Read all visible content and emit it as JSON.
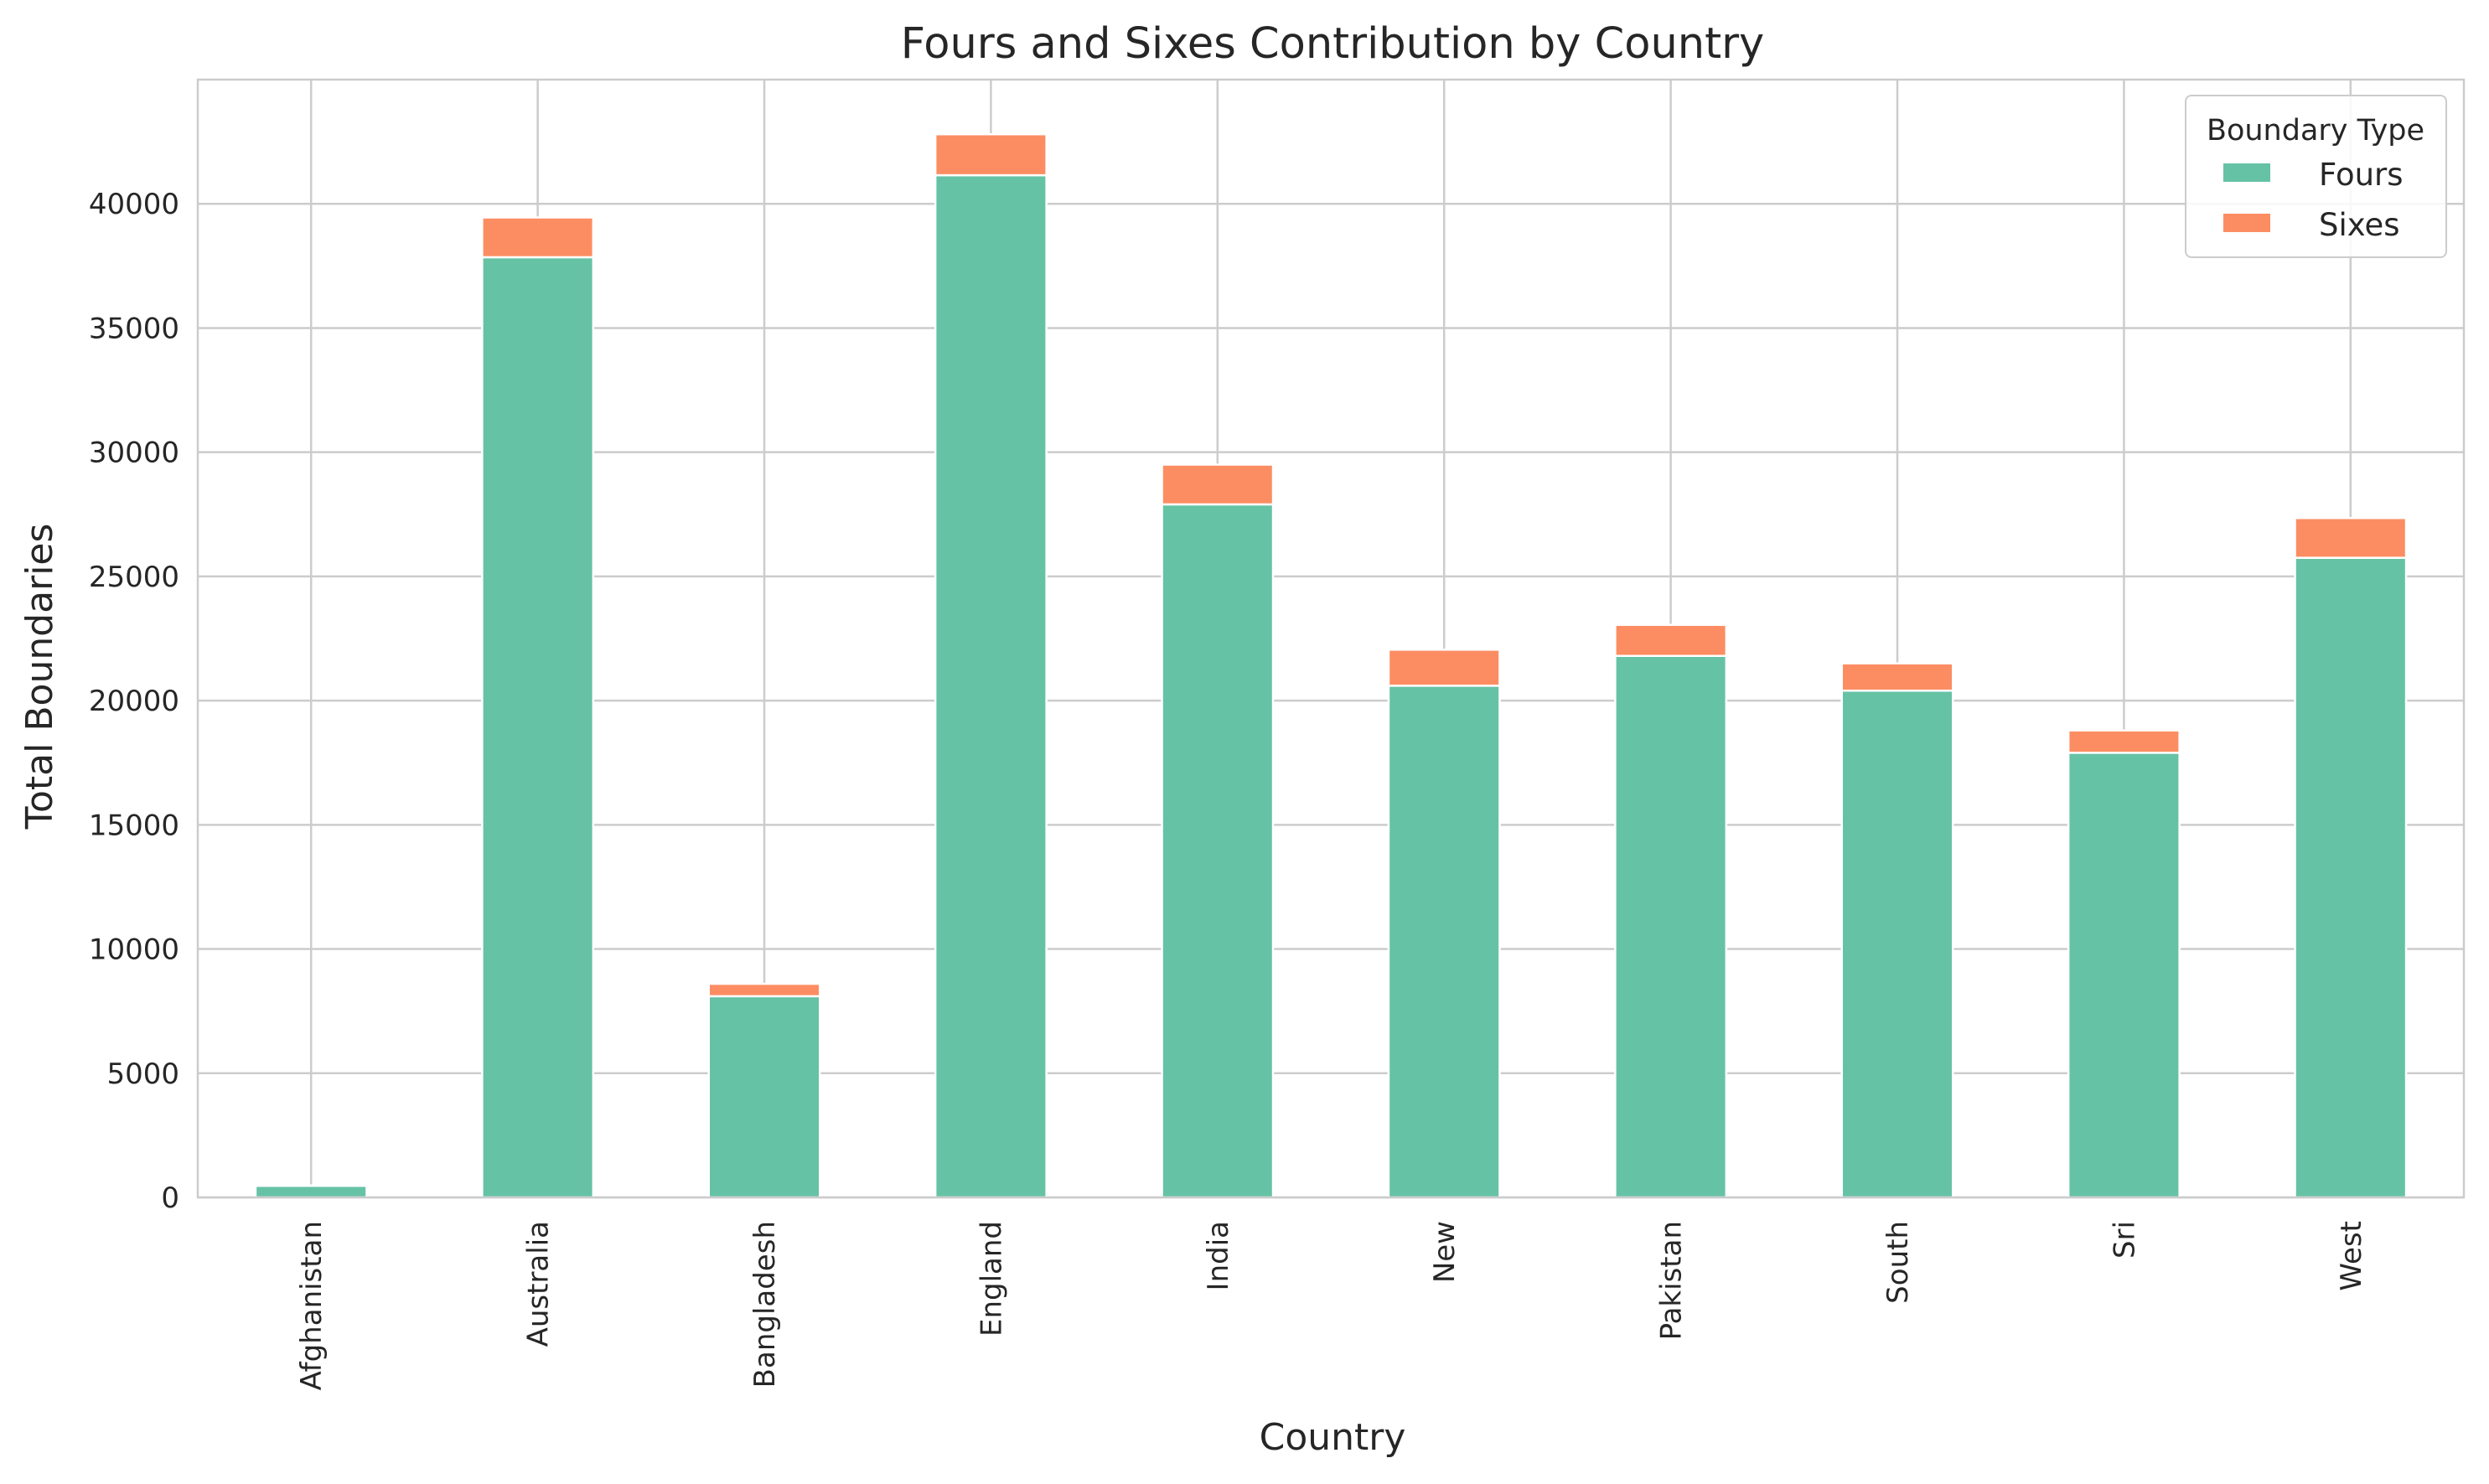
{
  "chart_data": {
    "type": "bar",
    "stacked": true,
    "title": "Fours and Sixes Contribution by Country",
    "xlabel": "Country",
    "ylabel": "Total Boundaries",
    "categories": [
      "Afghanistan",
      "Australia",
      "Bangladesh",
      "England",
      "India",
      "New",
      "Pakistan",
      "South",
      "Sri",
      "West"
    ],
    "series": [
      {
        "name": "Fours",
        "color": "#66c2a5",
        "values": [
          470,
          37850,
          8100,
          41150,
          27900,
          20600,
          21800,
          20400,
          17900,
          25750
        ]
      },
      {
        "name": "Sixes",
        "color": "#fc8d62",
        "values": [
          10,
          1600,
          500,
          1650,
          1600,
          1450,
          1250,
          1100,
          900,
          1600
        ]
      }
    ],
    "ylim": [
      0,
      45000
    ],
    "yticks": [
      0,
      5000,
      10000,
      15000,
      20000,
      25000,
      30000,
      35000,
      40000
    ],
    "grid": true,
    "legend": {
      "title": "Boundary Type",
      "placement": "top-right"
    }
  }
}
